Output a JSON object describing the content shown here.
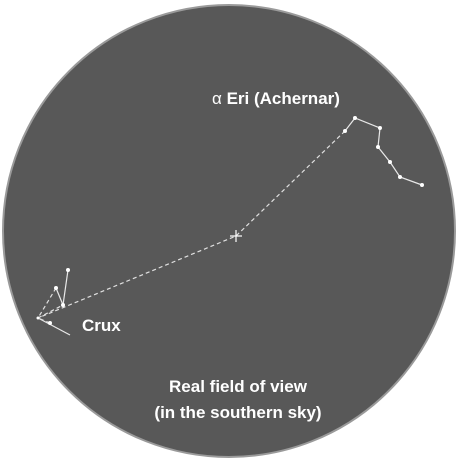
{
  "labels": {
    "star_greek": "α",
    "star_name": "Eri (Achernar)",
    "constellation": "Crux",
    "caption": [
      "Real field of view",
      "(in the southern sky)"
    ]
  }
}
